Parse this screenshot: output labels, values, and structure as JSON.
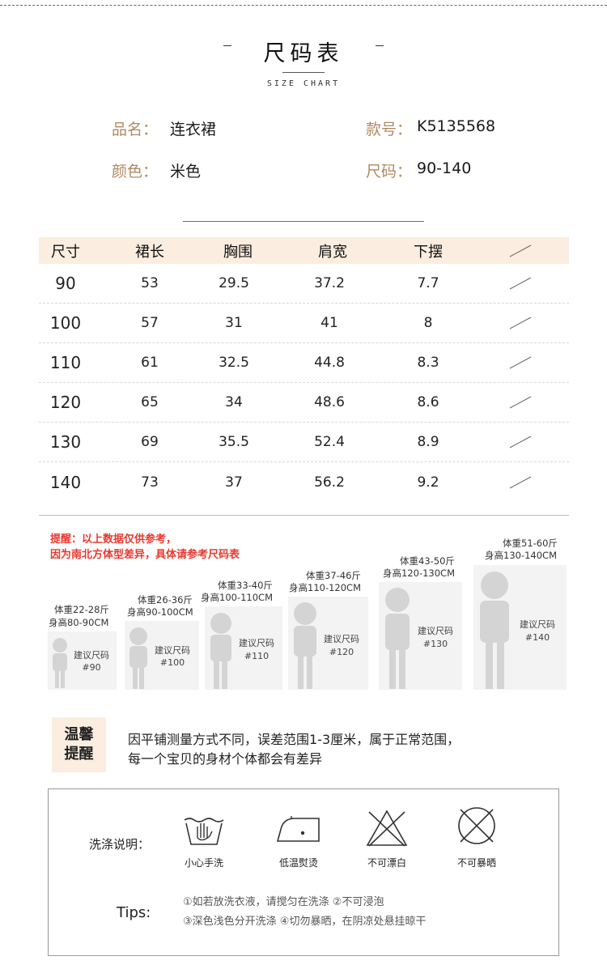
{
  "header": {
    "title": "尺码表",
    "left_mark": "-",
    "right_mark": "-",
    "subtitle": "SIZE CHART"
  },
  "product": {
    "name_label": "品名：",
    "name_value": "连衣裙",
    "color_label": "颜色：",
    "color_value": "米色",
    "style_label": "款号：",
    "style_value": "K5135568",
    "size_label": "尺码：",
    "size_value": "90-140"
  },
  "size_table": {
    "headers": [
      "尺寸",
      "裙长",
      "胸围",
      "肩宽",
      "下摆",
      ""
    ],
    "rows": [
      [
        "90",
        "53",
        "29.5",
        "37.2",
        "7.7"
      ],
      [
        "100",
        "57",
        "31",
        "41",
        "8"
      ],
      [
        "110",
        "61",
        "32.5",
        "44.8",
        "8.3"
      ],
      [
        "120",
        "65",
        "34",
        "48.6",
        "8.6"
      ],
      [
        "130",
        "69",
        "35.5",
        "52.4",
        "8.9"
      ],
      [
        "140",
        "73",
        "37",
        "56.2",
        "9.2"
      ]
    ]
  },
  "reminder": {
    "line1": "提醒：以上数据仅供参考，",
    "line2": "因为南北方体型差异，具体请参考尺码表"
  },
  "size_guide": [
    {
      "weight": "体重22-28斤",
      "height": "身高80-90CM",
      "suggest": "建议尺码",
      "code": "#90"
    },
    {
      "weight": "体重26-36斤",
      "height": "身高90-100CM",
      "suggest": "建议尺码",
      "code": "#100"
    },
    {
      "weight": "体重33-40斤",
      "height": "身高100-110CM",
      "suggest": "建议尺码",
      "code": "#110"
    },
    {
      "weight": "体重37-46斤",
      "height": "身高110-120CM",
      "suggest": "建议尺码",
      "code": "#120"
    },
    {
      "weight": "体重43-50斤",
      "height": "身高120-130CM",
      "suggest": "建议尺码",
      "code": "#130"
    },
    {
      "weight": "体重51-60斤",
      "height": "身高130-140CM",
      "suggest": "建议尺码",
      "code": "#140"
    }
  ],
  "warm_tip": {
    "label_line1": "温馨",
    "label_line2": "提醒",
    "line1": "因平铺测量方式不同，误差范围1-3厘米，属于正常范围，",
    "line2": "每一个宝贝的身材个体都会有差异"
  },
  "care": {
    "label": "洗涤说明：",
    "icons": [
      {
        "icon": "hand-wash-icon",
        "caption": "小心手洗"
      },
      {
        "icon": "low-iron-icon",
        "caption": "低温熨烫"
      },
      {
        "icon": "no-bleach-icon",
        "caption": "不可漂白"
      },
      {
        "icon": "no-sun-dry-icon",
        "caption": "不可暴晒"
      }
    ],
    "tips_label": "Tips:",
    "tips_line1": "①如若放洗衣液，请搅匀在洗涤 ②不可浸泡",
    "tips_line2": "③深色浅色分开洗涤 ④切勿暴晒，在阴凉处悬挂晾干"
  },
  "colors": {
    "accent": "#b08a63",
    "header_bg": "#fbeee0",
    "reminder": "#e8392f"
  }
}
